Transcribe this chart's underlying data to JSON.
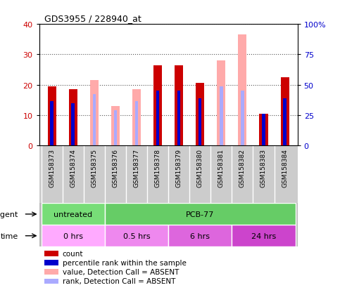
{
  "title": "GDS3955 / 228940_at",
  "samples": [
    "GSM158373",
    "GSM158374",
    "GSM158375",
    "GSM158376",
    "GSM158377",
    "GSM158378",
    "GSM158379",
    "GSM158380",
    "GSM158381",
    "GSM158382",
    "GSM158383",
    "GSM158384"
  ],
  "count_values": [
    19.5,
    18.5,
    null,
    null,
    null,
    26.5,
    26.5,
    20.5,
    null,
    null,
    10.5,
    22.5
  ],
  "percentile_rank": [
    14.5,
    14.0,
    null,
    null,
    null,
    18.0,
    18.0,
    15.5,
    null,
    null,
    10.5,
    15.5
  ],
  "absent_value": [
    null,
    null,
    21.5,
    13.0,
    18.5,
    null,
    null,
    null,
    28.0,
    36.5,
    null,
    null
  ],
  "absent_rank": [
    null,
    null,
    17.0,
    11.5,
    14.5,
    null,
    null,
    null,
    19.5,
    18.0,
    null,
    null
  ],
  "ylim_left": [
    0,
    40
  ],
  "ylim_right": [
    0,
    100
  ],
  "yticks_left": [
    0,
    10,
    20,
    30,
    40
  ],
  "ytick_labels_right": [
    "0",
    "25",
    "50",
    "75",
    "100%"
  ],
  "color_count": "#cc0000",
  "color_rank": "#0000cc",
  "color_absent_value": "#ffaaaa",
  "color_absent_rank": "#aaaaff",
  "agent_groups": [
    {
      "label": "untreated",
      "start": 0,
      "end": 3,
      "color": "#77dd77"
    },
    {
      "label": "PCB-77",
      "start": 3,
      "end": 12,
      "color": "#66cc66"
    }
  ],
  "time_groups": [
    {
      "label": "0 hrs",
      "start": 0,
      "end": 3,
      "color": "#ffaaff"
    },
    {
      "label": "0.5 hrs",
      "start": 3,
      "end": 6,
      "color": "#ee88ee"
    },
    {
      "label": "6 hrs",
      "start": 6,
      "end": 9,
      "color": "#dd66dd"
    },
    {
      "label": "24 hrs",
      "start": 9,
      "end": 12,
      "color": "#cc44cc"
    }
  ],
  "legend_items": [
    {
      "label": "count",
      "color": "#cc0000"
    },
    {
      "label": "percentile rank within the sample",
      "color": "#0000cc"
    },
    {
      "label": "value, Detection Call = ABSENT",
      "color": "#ffaaaa"
    },
    {
      "label": "rank, Detection Call = ABSENT",
      "color": "#aaaaff"
    }
  ],
  "bar_width": 0.4,
  "rank_bar_width": 0.15,
  "background_color": "#ffffff",
  "grid_color": "#444444"
}
